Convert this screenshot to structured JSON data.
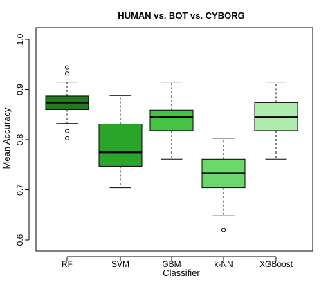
{
  "chart_data": {
    "type": "boxplot",
    "title": "HUMAN vs. BOT vs. CYBORG",
    "xlabel": "Classifier",
    "ylabel": "Mean Accuracy",
    "ylim": [
      0.6,
      1.0
    ],
    "yticks": [
      "0.6",
      "0.7",
      "0.8",
      "0.9",
      "1.0"
    ],
    "categories": [
      "RF",
      "SVM",
      "GBM",
      "k-NN",
      "XGBoost"
    ],
    "boxes": [
      {
        "name": "RF",
        "whisker_low": 0.832,
        "q1": 0.86,
        "median": 0.874,
        "q3": 0.887,
        "whisker_high": 0.915,
        "outliers": [
          0.944,
          0.932,
          0.817,
          0.803
        ],
        "color": "#1e7b1e"
      },
      {
        "name": "SVM",
        "whisker_low": 0.704,
        "q1": 0.747,
        "median": 0.775,
        "q3": 0.831,
        "whisker_high": 0.888,
        "outliers": [],
        "color": "#2aa52a"
      },
      {
        "name": "GBM",
        "whisker_low": 0.761,
        "q1": 0.818,
        "median": 0.845,
        "q3": 0.859,
        "whisker_high": 0.915,
        "outliers": [],
        "color": "#45c345"
      },
      {
        "name": "k-NN",
        "whisker_low": 0.648,
        "q1": 0.704,
        "median": 0.733,
        "q3": 0.761,
        "whisker_high": 0.803,
        "outliers": [
          0.62
        ],
        "color": "#6ad86a"
      },
      {
        "name": "XGBoost",
        "whisker_low": 0.761,
        "q1": 0.818,
        "median": 0.845,
        "q3": 0.874,
        "whisker_high": 0.915,
        "outliers": [],
        "color": "#aeecae"
      }
    ]
  }
}
